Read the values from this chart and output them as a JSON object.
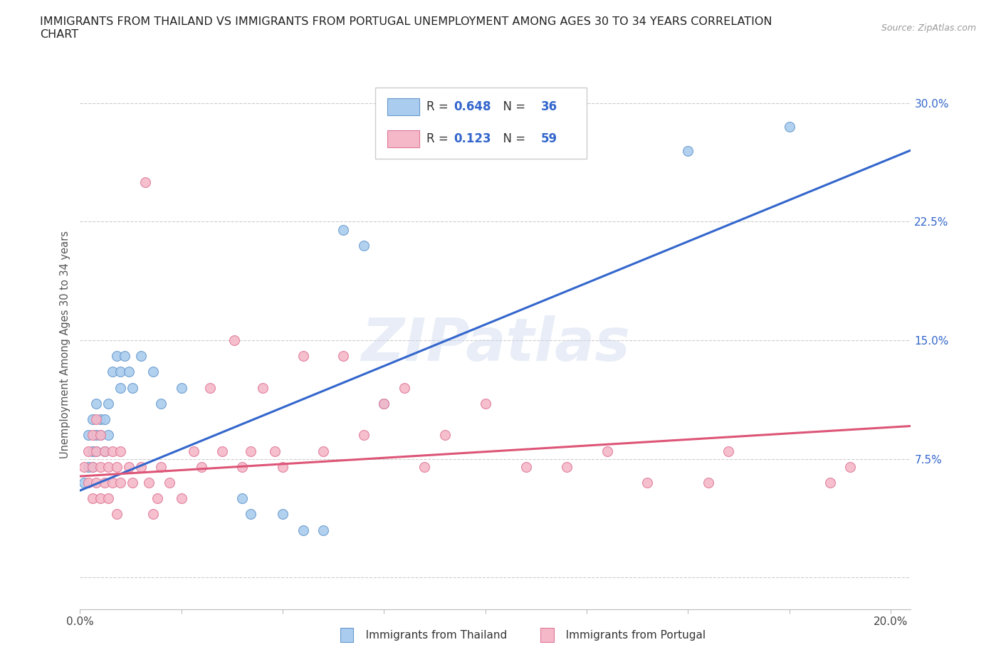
{
  "title": "IMMIGRANTS FROM THAILAND VS IMMIGRANTS FROM PORTUGAL UNEMPLOYMENT AMONG AGES 30 TO 34 YEARS CORRELATION\nCHART",
  "source_text": "Source: ZipAtlas.com",
  "ylabel": "Unemployment Among Ages 30 to 34 years",
  "xlim": [
    0.0,
    0.205
  ],
  "ylim": [
    -0.02,
    0.315
  ],
  "xticks": [
    0.0,
    0.025,
    0.05,
    0.075,
    0.1,
    0.125,
    0.15,
    0.175,
    0.2
  ],
  "yticks": [
    0.0,
    0.075,
    0.15,
    0.225,
    0.3
  ],
  "ytick_labels": [
    "",
    "7.5%",
    "15.0%",
    "22.5%",
    "30.0%"
  ],
  "watermark": "ZIPatlas",
  "thailand_color": "#aaccee",
  "thailand_edge": "#6699cc",
  "portugal_color": "#f4b8c8",
  "portugal_edge": "#e07898",
  "line_thailand_color": "#3366cc",
  "line_portugal_color": "#dd5577",
  "tick_color": "#3366cc",
  "R_thailand": 0.648,
  "N_thailand": 36,
  "R_portugal": 0.123,
  "N_portugal": 59,
  "thailand_points": [
    [
      0.001,
      0.06
    ],
    [
      0.002,
      0.07
    ],
    [
      0.002,
      0.09
    ],
    [
      0.003,
      0.07
    ],
    [
      0.003,
      0.08
    ],
    [
      0.003,
      0.1
    ],
    [
      0.004,
      0.08
    ],
    [
      0.004,
      0.09
    ],
    [
      0.004,
      0.11
    ],
    [
      0.005,
      0.09
    ],
    [
      0.005,
      0.1
    ],
    [
      0.006,
      0.08
    ],
    [
      0.006,
      0.1
    ],
    [
      0.007,
      0.09
    ],
    [
      0.007,
      0.11
    ],
    [
      0.008,
      0.13
    ],
    [
      0.009,
      0.14
    ],
    [
      0.01,
      0.12
    ],
    [
      0.01,
      0.13
    ],
    [
      0.011,
      0.14
    ],
    [
      0.012,
      0.13
    ],
    [
      0.013,
      0.12
    ],
    [
      0.015,
      0.14
    ],
    [
      0.018,
      0.13
    ],
    [
      0.02,
      0.11
    ],
    [
      0.025,
      0.12
    ],
    [
      0.04,
      0.05
    ],
    [
      0.042,
      0.04
    ],
    [
      0.05,
      0.04
    ],
    [
      0.055,
      0.03
    ],
    [
      0.06,
      0.03
    ],
    [
      0.065,
      0.22
    ],
    [
      0.07,
      0.21
    ],
    [
      0.075,
      0.11
    ],
    [
      0.15,
      0.27
    ],
    [
      0.175,
      0.285
    ]
  ],
  "portugal_points": [
    [
      0.001,
      0.07
    ],
    [
      0.002,
      0.06
    ],
    [
      0.002,
      0.08
    ],
    [
      0.003,
      0.05
    ],
    [
      0.003,
      0.07
    ],
    [
      0.003,
      0.09
    ],
    [
      0.004,
      0.06
    ],
    [
      0.004,
      0.08
    ],
    [
      0.004,
      0.1
    ],
    [
      0.005,
      0.05
    ],
    [
      0.005,
      0.07
    ],
    [
      0.005,
      0.09
    ],
    [
      0.006,
      0.06
    ],
    [
      0.006,
      0.08
    ],
    [
      0.007,
      0.07
    ],
    [
      0.007,
      0.05
    ],
    [
      0.008,
      0.06
    ],
    [
      0.008,
      0.08
    ],
    [
      0.009,
      0.04
    ],
    [
      0.009,
      0.07
    ],
    [
      0.01,
      0.06
    ],
    [
      0.01,
      0.08
    ],
    [
      0.012,
      0.07
    ],
    [
      0.013,
      0.06
    ],
    [
      0.015,
      0.07
    ],
    [
      0.016,
      0.25
    ],
    [
      0.017,
      0.06
    ],
    [
      0.018,
      0.04
    ],
    [
      0.019,
      0.05
    ],
    [
      0.02,
      0.07
    ],
    [
      0.022,
      0.06
    ],
    [
      0.025,
      0.05
    ],
    [
      0.028,
      0.08
    ],
    [
      0.03,
      0.07
    ],
    [
      0.032,
      0.12
    ],
    [
      0.035,
      0.08
    ],
    [
      0.038,
      0.15
    ],
    [
      0.04,
      0.07
    ],
    [
      0.042,
      0.08
    ],
    [
      0.045,
      0.12
    ],
    [
      0.048,
      0.08
    ],
    [
      0.05,
      0.07
    ],
    [
      0.055,
      0.14
    ],
    [
      0.06,
      0.08
    ],
    [
      0.065,
      0.14
    ],
    [
      0.07,
      0.09
    ],
    [
      0.075,
      0.11
    ],
    [
      0.08,
      0.12
    ],
    [
      0.085,
      0.07
    ],
    [
      0.09,
      0.09
    ],
    [
      0.1,
      0.11
    ],
    [
      0.11,
      0.07
    ],
    [
      0.12,
      0.07
    ],
    [
      0.13,
      0.08
    ],
    [
      0.14,
      0.06
    ],
    [
      0.155,
      0.06
    ],
    [
      0.16,
      0.08
    ],
    [
      0.185,
      0.06
    ],
    [
      0.19,
      0.07
    ]
  ]
}
